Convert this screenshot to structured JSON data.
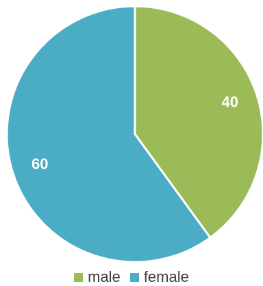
{
  "chart_data": {
    "type": "pie",
    "categories": [
      "male",
      "female"
    ],
    "values": [
      40,
      60
    ],
    "colors": [
      "#9bbb59",
      "#4bacc6"
    ],
    "start_angle_deg": 0,
    "direction": "clockwise",
    "data_labels": [
      "40",
      "60"
    ],
    "legend": {
      "placement": "bottom",
      "entries": [
        "male",
        "female"
      ]
    }
  }
}
